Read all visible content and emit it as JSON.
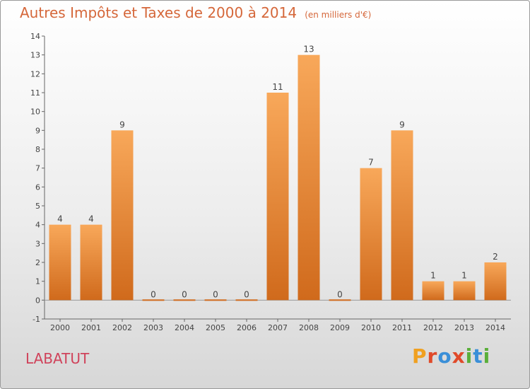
{
  "title": "Autres Impôts et Taxes de 2000 à 2014",
  "subtitle": "(en milliers d'€)",
  "commune": "LABATUT",
  "brand": {
    "letters": [
      "P",
      "r",
      "o",
      "x",
      "i",
      "t",
      "i"
    ],
    "colors": [
      "#f0a020",
      "#e04a2a",
      "#3a8fd8",
      "#e04a2a",
      "#5aaf3a",
      "#3a8fd8",
      "#5aaf3a"
    ]
  },
  "chart_data": {
    "type": "bar",
    "categories": [
      "2000",
      "2001",
      "2002",
      "2003",
      "2004",
      "2005",
      "2006",
      "2007",
      "2008",
      "2009",
      "2010",
      "2011",
      "2012",
      "2013",
      "2014"
    ],
    "values": [
      4,
      4,
      9,
      0,
      0,
      0,
      0,
      11,
      13,
      0,
      7,
      9,
      1,
      1,
      2
    ],
    "data_labels": [
      "4",
      "4",
      "9",
      "0",
      "0",
      "0",
      "0",
      "11",
      "13",
      "0",
      "7",
      "9",
      "1",
      "1",
      "2"
    ],
    "y_ticks": [
      "-1",
      "0",
      "1",
      "2",
      "3",
      "4",
      "5",
      "6",
      "7",
      "8",
      "9",
      "10",
      "11",
      "12",
      "13",
      "14"
    ],
    "ylim": [
      -1,
      14
    ],
    "bar_color_top": "#f8a85a",
    "bar_color_bottom": "#d06a1c",
    "grid": false,
    "legend": "none"
  }
}
